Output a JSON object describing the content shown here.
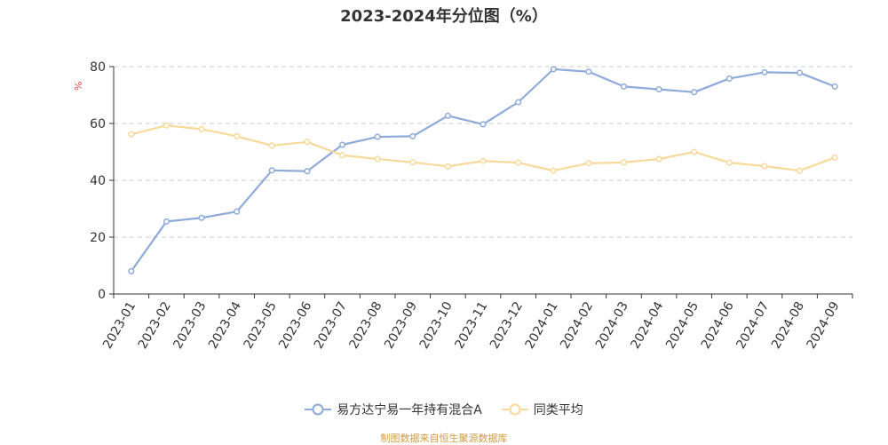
{
  "title": "2023-2024年分位图（%）",
  "footer": "制图数据来自恒生聚源数据库",
  "colors": {
    "series_a": "#8eaadb",
    "series_b": "#f9d99a",
    "grid": "#cccccc",
    "axis": "#333333",
    "ylabel": "#e64545"
  },
  "chart_data": {
    "type": "line",
    "title": "2023-2024年分位图（%）",
    "xlabel": "",
    "ylabel": "%",
    "ylim": [
      0,
      80
    ],
    "yticks": [
      0,
      20,
      40,
      60,
      80
    ],
    "grid": true,
    "legend_position": "bottom",
    "categories": [
      "2023-01",
      "2023-02",
      "2023-03",
      "2023-04",
      "2023-05",
      "2023-06",
      "2023-07",
      "2023-08",
      "2023-09",
      "2023-10",
      "2023-11",
      "2023-12",
      "2024-01",
      "2024-02",
      "2024-03",
      "2024-04",
      "2024-05",
      "2024-06",
      "2024-07",
      "2024-08",
      "2024-09"
    ],
    "series": [
      {
        "name": "易方达宁易一年持有混合A",
        "values": [
          8.0,
          25.5,
          26.8,
          29.0,
          43.5,
          43.2,
          52.5,
          55.3,
          55.5,
          62.7,
          59.7,
          67.5,
          79.1,
          78.2,
          73.0,
          72.0,
          71.0,
          75.8,
          78.0,
          77.8,
          73.0
        ]
      },
      {
        "name": "同类平均",
        "values": [
          56.2,
          59.3,
          58.0,
          55.5,
          52.2,
          53.5,
          48.8,
          47.5,
          46.3,
          44.9,
          46.8,
          46.2,
          43.4,
          46.0,
          46.3,
          47.5,
          50.0,
          46.2,
          45.0,
          43.4,
          48.0
        ]
      }
    ]
  }
}
